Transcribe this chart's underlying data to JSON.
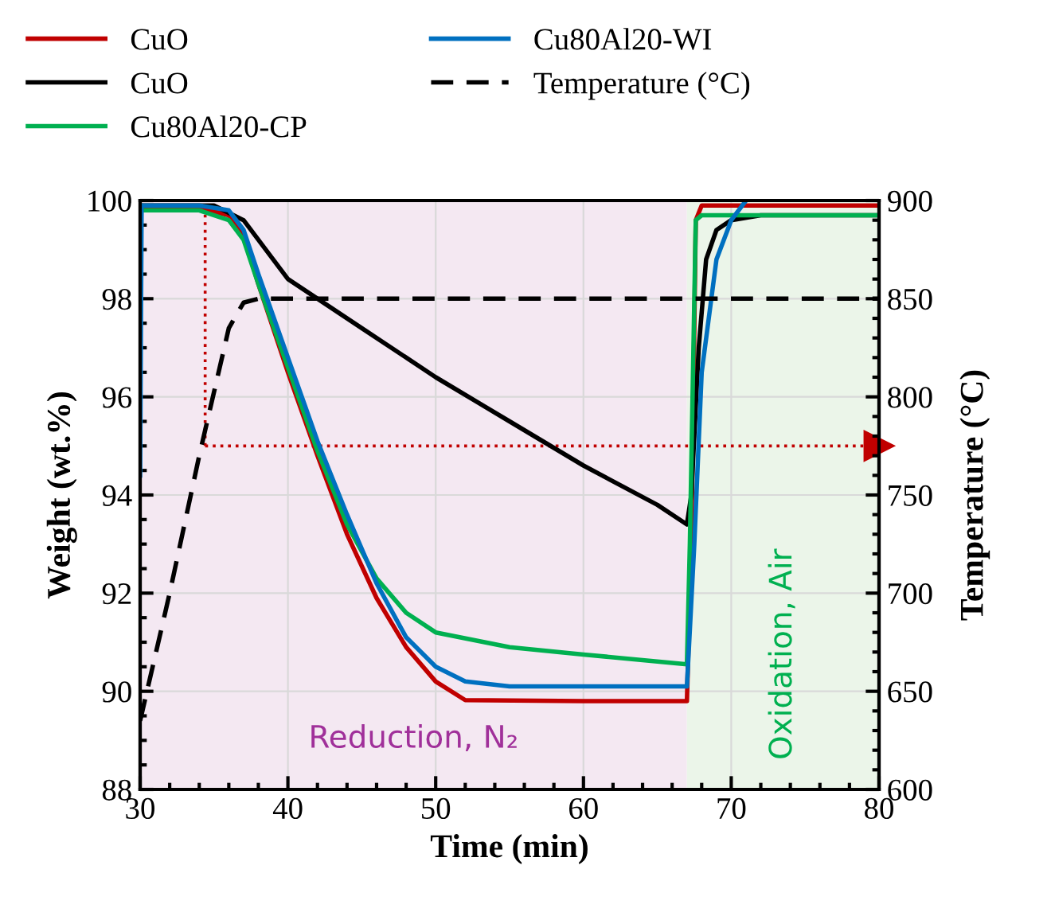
{
  "chart_data": {
    "type": "line",
    "xlabel": "Time (min)",
    "ylabel": "Weight (wt.%)",
    "y2label": "Temperature (°C)",
    "xlim": [
      30,
      80
    ],
    "xticks": [
      30,
      40,
      50,
      60,
      70,
      80
    ],
    "ylim": [
      88,
      100
    ],
    "yticks": [
      88,
      90,
      92,
      94,
      96,
      98,
      100
    ],
    "y2lim": [
      600,
      900
    ],
    "y2ticks": [
      600,
      650,
      700,
      750,
      800,
      850,
      900
    ],
    "grid": true,
    "legend": "top",
    "marker": "none",
    "series": [
      {
        "name": "CuO",
        "color": "#c00000",
        "x": [
          30,
          34,
          36,
          37,
          38,
          40,
          42,
          44,
          46,
          48,
          50,
          52,
          60,
          67,
          67.3,
          67.6,
          68,
          80
        ],
        "values": [
          99.85,
          99.85,
          99.7,
          99.3,
          98.3,
          96.5,
          94.8,
          93.2,
          91.9,
          90.9,
          90.2,
          89.82,
          89.8,
          89.8,
          93,
          99.6,
          99.9,
          99.9
        ]
      },
      {
        "name": "CuO",
        "color": "#000000",
        "x": [
          30,
          35,
          37,
          40,
          45,
          50,
          55,
          60,
          65,
          67,
          67.3,
          67.8,
          68.3,
          69,
          70,
          72,
          80
        ],
        "values": [
          99.9,
          99.9,
          99.6,
          98.4,
          97.4,
          96.4,
          95.5,
          94.6,
          93.8,
          93.4,
          94,
          97,
          98.8,
          99.4,
          99.6,
          99.7,
          99.7
        ]
      },
      {
        "name": "Cu80Al20-CP",
        "color": "#00b050",
        "x": [
          30,
          34,
          36,
          37,
          38,
          40,
          42,
          44,
          46,
          48,
          50,
          55,
          60,
          67,
          67.2,
          67.6,
          68,
          80
        ],
        "values": [
          99.8,
          99.8,
          99.6,
          99.2,
          98.3,
          96.6,
          94.9,
          93.4,
          92.3,
          91.6,
          91.2,
          90.9,
          90.75,
          90.55,
          93,
          99.6,
          99.7,
          99.7
        ]
      },
      {
        "name": "Cu80Al20-WI",
        "color": "#0070c0",
        "x": [
          30,
          30.1,
          34,
          36,
          37,
          38,
          40,
          42,
          44,
          46,
          48,
          50,
          52,
          55,
          67,
          67.5,
          68,
          69,
          70,
          71
        ],
        "values": [
          94.4,
          99.9,
          99.9,
          99.8,
          99.4,
          98.5,
          96.8,
          95.1,
          93.6,
          92.2,
          91.1,
          90.5,
          90.2,
          90.1,
          90.1,
          93,
          96.5,
          98.8,
          99.6,
          100
        ]
      },
      {
        "name": "Temperature (°C)",
        "color": "#000000",
        "axis": "y2",
        "line_style": "dashed",
        "x": [
          30,
          32,
          34,
          36,
          37,
          38,
          80
        ],
        "values": [
          635,
          700,
          770,
          835,
          848,
          850,
          850
        ]
      }
    ],
    "ref_lines": [
      {
        "axis": "x",
        "value": 34.4,
        "color": "#c00000",
        "line_style": "dotted"
      },
      {
        "axis": "y",
        "value": 95,
        "color": "#c00000",
        "line_style": "dotted"
      }
    ],
    "bands": [
      {
        "axis": "x",
        "from": 30,
        "to": 67,
        "label": "Reduction, N₂",
        "color": "#f4e8f2"
      },
      {
        "axis": "x",
        "from": 67,
        "to": 80,
        "label": "Oxidation, Air",
        "color": "#ebf5e9"
      }
    ]
  }
}
